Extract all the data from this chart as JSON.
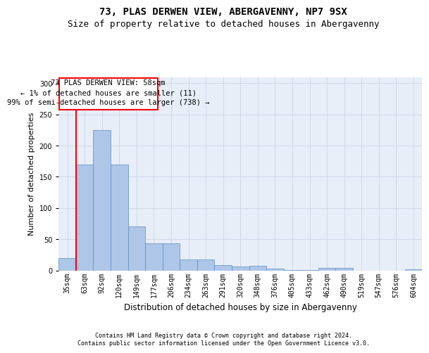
{
  "title": "73, PLAS DERWEN VIEW, ABERGAVENNY, NP7 9SX",
  "subtitle": "Size of property relative to detached houses in Abergavenny",
  "xlabel": "Distribution of detached houses by size in Abergavenny",
  "ylabel": "Number of detached properties",
  "categories": [
    "35sqm",
    "63sqm",
    "92sqm",
    "120sqm",
    "149sqm",
    "177sqm",
    "206sqm",
    "234sqm",
    "263sqm",
    "291sqm",
    "320sqm",
    "348sqm",
    "376sqm",
    "405sqm",
    "433sqm",
    "462sqm",
    "490sqm",
    "519sqm",
    "547sqm",
    "576sqm",
    "604sqm"
  ],
  "values": [
    20,
    170,
    225,
    170,
    70,
    43,
    43,
    18,
    17,
    8,
    6,
    7,
    3,
    1,
    1,
    4,
    4,
    0,
    0,
    0,
    2
  ],
  "bar_color": "#aec6e8",
  "bar_edge_color": "#5a8fc2",
  "annotation_line1": "73 PLAS DERWEN VIEW: 58sqm",
  "annotation_line2": "← 1% of detached houses are smaller (11)",
  "annotation_line3": "99% of semi-detached houses are larger (738) →",
  "vline_color": "red",
  "box_color": "red",
  "grid_color": "#d0d8e8",
  "background_color": "#e8eef8",
  "footer_text": "Contains HM Land Registry data © Crown copyright and database right 2024.\nContains public sector information licensed under the Open Government Licence v3.0.",
  "ylim": [
    0,
    310
  ],
  "title_fontsize": 10,
  "subtitle_fontsize": 9,
  "xlabel_fontsize": 8.5,
  "ylabel_fontsize": 8,
  "tick_fontsize": 7,
  "annotation_fontsize": 7.5,
  "footer_fontsize": 6
}
